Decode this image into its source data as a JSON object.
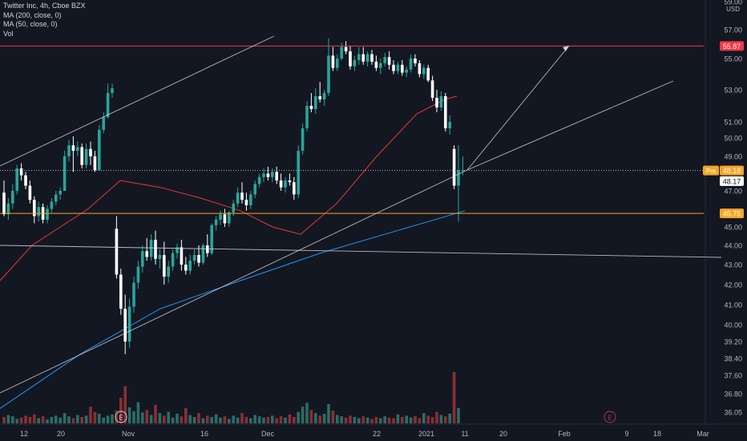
{
  "legend": {
    "title": "Twitter Inc, 4h, Cboe BZX",
    "ma200": "MA (200, close, 0)",
    "ma50": "MA (50, close, 0)",
    "vol": "Vol"
  },
  "colors": {
    "background": "#131722",
    "up": "#26a69a",
    "down": "#ffffff",
    "vol_up": "#2a6e66",
    "vol_down": "#8a2f33",
    "ma200": "#2196f3",
    "ma50": "#e53935",
    "resistance": "#f23645",
    "support": "#f5a623",
    "trend": "#d1d4dc"
  },
  "chart_data": {
    "type": "candlestick",
    "currency": "USD",
    "x_tick_labels": [
      "12",
      "20",
      "Nov",
      "16",
      "Dec",
      "22",
      "2021",
      "11",
      "20",
      "Feb",
      "9",
      "18",
      "Mar"
    ],
    "y_tick_labels": [
      "59.00",
      "57.00",
      "55.00",
      "53.00",
      "51.00",
      "50.00",
      "49.00",
      "47.00",
      "45.00",
      "44.00",
      "43.00",
      "42.00",
      "41.00",
      "40.00",
      "39.20",
      "38.40",
      "37.60",
      "36.80",
      "36.05"
    ],
    "y_ticks": [
      59.0,
      57.0,
      55.0,
      53.0,
      51.0,
      50.0,
      49.0,
      47.0,
      45.0,
      44.0,
      43.0,
      42.0,
      41.0,
      40.0,
      39.2,
      38.4,
      37.6,
      36.8,
      36.05
    ],
    "price_labels": [
      {
        "text": "55.87",
        "value": 55.87,
        "color": "#f23645"
      },
      {
        "text": "48.18",
        "value": 48.18,
        "color": "#f5a623",
        "prefix": "Pre"
      },
      {
        "text": "48.17",
        "value": 48.17,
        "color": "#ffffff"
      },
      {
        "text": "45.75",
        "value": 45.75,
        "color": "#f5a623"
      }
    ],
    "horizontal_lines": [
      {
        "name": "resistance",
        "value": 55.87
      },
      {
        "name": "support",
        "value": 45.75
      },
      {
        "name": "premarket",
        "value": 48.18
      }
    ],
    "event_markers": [
      "E",
      "E"
    ],
    "candles": [
      [
        46.9,
        47.6,
        45.6,
        45.7
      ],
      [
        45.7,
        46.6,
        45.4,
        46.3
      ],
      [
        46.3,
        47.4,
        46.0,
        47.0
      ],
      [
        47.0,
        48.5,
        46.8,
        48.3
      ],
      [
        48.3,
        48.6,
        47.6,
        47.9
      ],
      [
        47.9,
        48.1,
        47.1,
        47.3
      ],
      [
        47.3,
        47.6,
        46.3,
        46.5
      ],
      [
        46.5,
        46.7,
        45.2,
        45.6
      ],
      [
        45.6,
        46.4,
        45.3,
        46.1
      ],
      [
        46.1,
        46.3,
        45.2,
        45.4
      ],
      [
        45.4,
        46.2,
        45.2,
        46.0
      ],
      [
        46.0,
        46.6,
        45.8,
        46.4
      ],
      [
        46.4,
        47.0,
        46.2,
        46.8
      ],
      [
        46.8,
        47.2,
        46.5,
        47.0
      ],
      [
        47.0,
        49.3,
        47.0,
        49.0
      ],
      [
        49.0,
        49.9,
        48.7,
        49.6
      ],
      [
        49.6,
        50.1,
        48.1,
        49.3
      ],
      [
        49.3,
        49.8,
        49.0,
        49.5
      ],
      [
        49.5,
        49.7,
        48.3,
        48.5
      ],
      [
        48.5,
        49.7,
        48.3,
        49.4
      ],
      [
        49.4,
        49.8,
        48.5,
        49.0
      ],
      [
        49.0,
        49.3,
        48.1,
        48.2
      ],
      [
        48.2,
        50.8,
        48.2,
        50.5
      ],
      [
        50.5,
        51.6,
        50.3,
        51.3
      ],
      [
        51.3,
        53.4,
        51.2,
        52.8
      ],
      [
        52.8,
        53.4,
        52.5,
        53.1
      ],
      [
        44.9,
        45.6,
        42.3,
        42.5
      ],
      [
        42.5,
        42.8,
        40.5,
        40.8
      ],
      [
        40.8,
        41.5,
        38.6,
        39.2
      ],
      [
        39.2,
        41.3,
        38.9,
        40.9
      ],
      [
        40.9,
        42.4,
        40.6,
        42.1
      ],
      [
        42.1,
        43.2,
        41.8,
        42.9
      ],
      [
        42.9,
        44.0,
        42.6,
        43.7
      ],
      [
        43.7,
        44.4,
        43.2,
        43.4
      ],
      [
        43.4,
        44.6,
        43.2,
        44.3
      ],
      [
        44.3,
        44.8,
        43.0,
        43.3
      ],
      [
        43.3,
        43.8,
        42.8,
        43.5
      ],
      [
        43.5,
        44.2,
        42.0,
        42.4
      ],
      [
        42.4,
        43.2,
        42.1,
        42.9
      ],
      [
        42.9,
        43.8,
        42.7,
        43.6
      ],
      [
        43.6,
        44.1,
        43.3,
        43.9
      ],
      [
        43.9,
        44.3,
        42.7,
        43.0
      ],
      [
        43.0,
        43.4,
        42.5,
        42.7
      ],
      [
        42.7,
        43.5,
        42.5,
        43.2
      ],
      [
        43.2,
        43.8,
        43.0,
        43.5
      ],
      [
        43.5,
        44.0,
        42.9,
        43.1
      ],
      [
        43.1,
        44.1,
        43.0,
        44.0
      ],
      [
        44.0,
        44.6,
        43.4,
        43.6
      ],
      [
        43.6,
        45.2,
        43.5,
        45.1
      ],
      [
        45.1,
        45.6,
        44.8,
        45.4
      ],
      [
        45.4,
        45.9,
        45.1,
        45.7
      ],
      [
        45.7,
        46.0,
        45.0,
        45.2
      ],
      [
        45.2,
        45.9,
        45.0,
        45.8
      ],
      [
        45.8,
        46.5,
        45.6,
        46.3
      ],
      [
        46.3,
        47.2,
        46.1,
        46.9
      ],
      [
        46.9,
        47.5,
        46.3,
        46.5
      ],
      [
        46.5,
        46.9,
        45.9,
        46.2
      ],
      [
        46.2,
        47.0,
        46.0,
        46.8
      ],
      [
        46.8,
        47.6,
        46.6,
        47.4
      ],
      [
        47.4,
        48.0,
        47.2,
        47.8
      ],
      [
        47.8,
        48.3,
        47.5,
        48.0
      ],
      [
        48.0,
        48.4,
        47.6,
        47.8
      ],
      [
        47.8,
        48.3,
        47.5,
        48.1
      ],
      [
        48.1,
        48.4,
        47.4,
        47.6
      ],
      [
        47.6,
        48.0,
        47.0,
        47.2
      ],
      [
        47.2,
        47.8,
        46.9,
        47.6
      ],
      [
        47.6,
        48.0,
        47.3,
        47.5
      ],
      [
        47.5,
        47.8,
        46.5,
        46.8
      ],
      [
        46.8,
        49.6,
        46.6,
        49.3
      ],
      [
        49.3,
        50.9,
        49.1,
        50.6
      ],
      [
        50.6,
        52.3,
        50.4,
        52.0
      ],
      [
        52.0,
        52.8,
        51.6,
        51.8
      ],
      [
        51.8,
        53.1,
        51.5,
        52.6
      ],
      [
        52.6,
        53.5,
        52.2,
        52.4
      ],
      [
        52.4,
        53.0,
        52.0,
        52.8
      ],
      [
        52.8,
        56.4,
        52.6,
        55.2
      ],
      [
        55.2,
        55.8,
        54.2,
        54.4
      ],
      [
        54.4,
        55.3,
        54.2,
        55.0
      ],
      [
        55.0,
        56.1,
        54.9,
        55.8
      ],
      [
        55.8,
        56.2,
        55.3,
        55.5
      ],
      [
        55.5,
        55.9,
        54.3,
        54.5
      ],
      [
        54.5,
        55.2,
        54.2,
        54.9
      ],
      [
        54.9,
        55.8,
        54.6,
        55.3
      ],
      [
        55.3,
        55.8,
        54.6,
        54.8
      ],
      [
        54.8,
        55.5,
        54.5,
        55.3
      ],
      [
        55.3,
        55.6,
        54.6,
        54.8
      ],
      [
        54.8,
        55.2,
        54.2,
        54.4
      ],
      [
        54.4,
        55.0,
        54.0,
        54.7
      ],
      [
        54.7,
        55.4,
        54.5,
        55.1
      ],
      [
        55.1,
        55.5,
        54.3,
        54.6
      ],
      [
        54.6,
        54.9,
        54.0,
        54.2
      ],
      [
        54.2,
        54.8,
        54.0,
        54.6
      ],
      [
        54.6,
        54.9,
        53.9,
        54.1
      ],
      [
        54.1,
        54.5,
        53.8,
        54.3
      ],
      [
        54.3,
        55.3,
        54.1,
        55.0
      ],
      [
        55.0,
        55.3,
        54.5,
        54.7
      ],
      [
        54.7,
        54.9,
        53.8,
        54.0
      ],
      [
        54.0,
        54.6,
        53.7,
        54.4
      ],
      [
        54.4,
        54.6,
        53.5,
        53.6
      ],
      [
        53.6,
        53.9,
        52.3,
        52.5
      ],
      [
        52.5,
        53.0,
        51.6,
        51.9
      ],
      [
        51.9,
        52.9,
        51.7,
        52.6
      ],
      [
        52.6,
        52.8,
        50.4,
        50.6
      ],
      [
        50.6,
        51.4,
        50.2,
        51.0
      ],
      [
        49.4,
        49.6,
        47.1,
        47.3
      ],
      [
        47.3,
        49.6,
        45.3,
        48.2
      ],
      [
        48.2,
        49.0,
        47.9,
        48.2
      ]
    ],
    "volumes": [
      0.1,
      0.13,
      0.11,
      0.07,
      0.09,
      0.12,
      0.1,
      0.14,
      0.08,
      0.11,
      0.06,
      0.1,
      0.12,
      0.09,
      0.16,
      0.11,
      0.08,
      0.13,
      0.1,
      0.12,
      0.26,
      0.18,
      0.15,
      0.09,
      0.12,
      0.14,
      0.2,
      0.4,
      0.58,
      0.25,
      0.19,
      0.33,
      0.17,
      0.21,
      0.13,
      0.29,
      0.16,
      0.12,
      0.18,
      0.09,
      0.15,
      0.11,
      0.24,
      0.13,
      0.1,
      0.16,
      0.08,
      0.12,
      0.1,
      0.14,
      0.09,
      0.11,
      0.07,
      0.12,
      0.09,
      0.16,
      0.1,
      0.08,
      0.13,
      0.11,
      0.09,
      0.1,
      0.12,
      0.08,
      0.11,
      0.09,
      0.14,
      0.1,
      0.18,
      0.26,
      0.32,
      0.21,
      0.16,
      0.12,
      0.15,
      0.3,
      0.2,
      0.13,
      0.11,
      0.09,
      0.12,
      0.1,
      0.08,
      0.11,
      0.09,
      0.07,
      0.1,
      0.08,
      0.11,
      0.09,
      0.08,
      0.14,
      0.1,
      0.12,
      0.09,
      0.11,
      0.08,
      0.16,
      0.12,
      0.1,
      0.18,
      0.13,
      0.11,
      0.15,
      0.8,
      0.24
    ],
    "ma50": [
      [
        0,
        42.2
      ],
      [
        40,
        44.0
      ],
      [
        110,
        46.0
      ],
      [
        150,
        47.6
      ],
      [
        200,
        47.2
      ],
      [
        250,
        46.6
      ],
      [
        300,
        45.9
      ],
      [
        340,
        45.0
      ],
      [
        375,
        44.6
      ],
      [
        420,
        46.3
      ],
      [
        470,
        49.0
      ],
      [
        520,
        51.5
      ],
      [
        555,
        52.4
      ],
      [
        570,
        52.6
      ]
    ],
    "ma200": [
      [
        0,
        36.2
      ],
      [
        100,
        38.6
      ],
      [
        200,
        40.8
      ],
      [
        300,
        42.2
      ],
      [
        400,
        43.6
      ],
      [
        480,
        44.6
      ],
      [
        550,
        45.5
      ],
      [
        580,
        45.9
      ]
    ]
  }
}
